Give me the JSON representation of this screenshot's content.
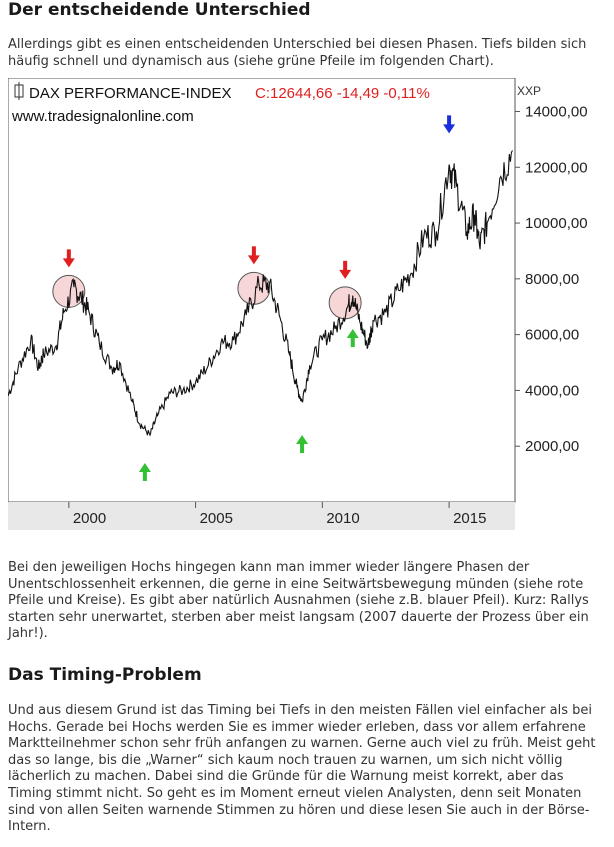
{
  "section1": {
    "heading": "Der entscheidende Unterschied",
    "paragraph": "Allerdings gibt es einen entscheidenden Unterschied bei diesen Phasen. Tiefs bilden sich häufig schnell und dynamisch aus (siehe grüne Pfeile im folgenden Chart)."
  },
  "chart_data": {
    "type": "line",
    "title": "DAX PERFORMANCE-INDEX",
    "quote": "C:12644,66 -14,49 -0,11%",
    "source": "www.tradesignalonline.com",
    "currency": "XXP",
    "y_ticks": [
      "14000,00",
      "12000,00",
      "10000,00",
      "8000,00",
      "6000,00",
      "4000,00",
      "2000,00"
    ],
    "x_ticks": [
      "2000",
      "2005",
      "2010",
      "2015"
    ],
    "ylim": [
      0,
      15200
    ],
    "xlim": [
      1997.6,
      2017.6
    ],
    "series": [
      {
        "x": [
          1997.6,
          1998.0,
          1998.5,
          1998.8,
          1999.0,
          1999.5,
          1999.8,
          2000.2,
          2000.5,
          2000.8,
          2001.2,
          2001.7,
          2002.0,
          2002.5,
          2002.8,
          2003.2,
          2003.5,
          2004.0,
          2004.5,
          2005.0,
          2005.5,
          2006.0,
          2006.5,
          2007.0,
          2007.5,
          2007.9,
          2008.3,
          2008.7,
          2009.0,
          2009.2,
          2009.5,
          2010.0,
          2010.5,
          2011.0,
          2011.2,
          2011.5,
          2011.8,
          2012.0,
          2012.5,
          2013.0,
          2013.5,
          2014.0,
          2014.5,
          2015.0,
          2015.3,
          2015.7,
          2016.0,
          2016.2,
          2016.5,
          2017.0,
          2017.5
        ],
        "y": [
          3800,
          4800,
          5800,
          4800,
          5300,
          5600,
          6800,
          7700,
          7300,
          6800,
          5700,
          4800,
          5000,
          3600,
          2800,
          2400,
          3100,
          3900,
          4000,
          4300,
          4900,
          5700,
          5800,
          6700,
          7800,
          7800,
          6700,
          5300,
          4100,
          3600,
          4900,
          5800,
          6200,
          7000,
          7400,
          6400,
          5600,
          6500,
          6800,
          7600,
          8200,
          9500,
          9700,
          12100,
          11300,
          9700,
          10300,
          9200,
          10000,
          11600,
          12600
        ]
      }
    ],
    "high_markers_red": [
      2000.0,
      2007.3,
      2010.9
    ],
    "high_marker_blue": 2015.0,
    "low_markers_green": [
      2003.0,
      2009.2,
      2011.2
    ]
  },
  "section2": {
    "paragraph": "Bei den jeweiligen Hochs hingegen kann man immer wieder längere Phasen der Unentschlossenheit erkennen, die gerne in eine Seitwärtsbewegung münden (siehe rote Pfeile und Kreise). Es gibt aber natürlich Ausnahmen (siehe z.B. blauer Pfeil). Kurz: Rallys starten sehr unerwartet, sterben aber meist langsam (2007 dauerte der Prozess über ein Jahr!)."
  },
  "section3": {
    "heading": "Das Timing-Problem",
    "paragraph": "Und aus diesem Grund ist das Timing bei Tiefs in den meisten Fällen viel einfacher als bei Hochs. Gerade bei Hochs werden Sie es immer wieder erleben, dass vor allem erfahrene Marktteilnehmer schon sehr früh anfangen zu warnen. Gerne auch viel zu früh. Meist geht das so lange, bis die „Warner“ sich kaum noch trauen zu warnen, um sich nicht völlig lächerlich zu machen. Dabei sind die Gründe für die Warnung meist korrekt, aber das Timing stimmt nicht. So geht es im Moment erneut vielen Analysten, denn seit Monaten sind von allen Seiten warnende Stimmen zu hören und diese lesen Sie auch in der Börse-Intern."
  },
  "colors": {
    "red": "#e02020",
    "green": "#33c033",
    "blue": "#1a2ee0",
    "circle_fill": "#f6d6d6"
  }
}
